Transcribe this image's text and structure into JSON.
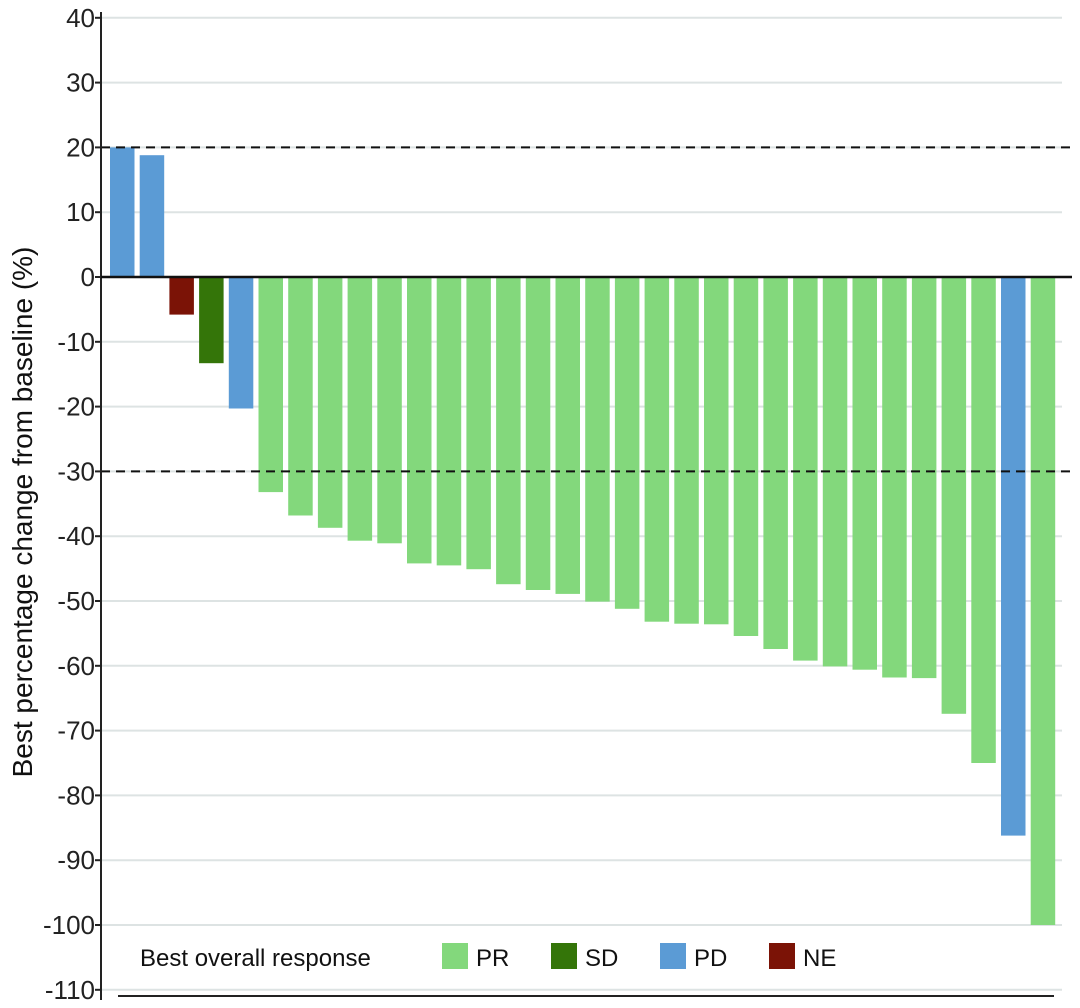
{
  "chart_data": {
    "type": "bar",
    "title": "",
    "xlabel": "",
    "ylabel": "Best percentage change from baseline (%)",
    "ylim": [
      -110,
      40
    ],
    "yticks": [
      40,
      30,
      20,
      10,
      0,
      -10,
      -20,
      -30,
      -40,
      -50,
      -60,
      -70,
      -80,
      -90,
      -100,
      -110
    ],
    "grid": "horizontal",
    "reference_lines": [
      20,
      -30
    ],
    "legend": {
      "title": "Best overall response",
      "placement": "bottom",
      "entries": [
        {
          "label": "PR",
          "color": "#83d87c"
        },
        {
          "label": "SD",
          "color": "#347509"
        },
        {
          "label": "PD",
          "color": "#5b9bd5"
        },
        {
          "label": "NE",
          "color": "#7b1306"
        }
      ]
    },
    "bars": [
      {
        "value": 20,
        "response": "PD"
      },
      {
        "value": 18.8,
        "response": "PD"
      },
      {
        "value": -5.8,
        "response": "NE"
      },
      {
        "value": -13.3,
        "response": "SD"
      },
      {
        "value": -20.3,
        "response": "PD"
      },
      {
        "value": -33.2,
        "response": "PR"
      },
      {
        "value": -36.8,
        "response": "PR"
      },
      {
        "value": -38.7,
        "response": "PR"
      },
      {
        "value": -40.7,
        "response": "PR"
      },
      {
        "value": -41.1,
        "response": "PR"
      },
      {
        "value": -44.2,
        "response": "PR"
      },
      {
        "value": -44.5,
        "response": "PR"
      },
      {
        "value": -45.1,
        "response": "PR"
      },
      {
        "value": -47.4,
        "response": "PR"
      },
      {
        "value": -48.3,
        "response": "PR"
      },
      {
        "value": -48.9,
        "response": "PR"
      },
      {
        "value": -50.1,
        "response": "PR"
      },
      {
        "value": -51.2,
        "response": "PR"
      },
      {
        "value": -53.2,
        "response": "PR"
      },
      {
        "value": -53.5,
        "response": "PR"
      },
      {
        "value": -53.6,
        "response": "PR"
      },
      {
        "value": -55.4,
        "response": "PR"
      },
      {
        "value": -57.4,
        "response": "PR"
      },
      {
        "value": -59.2,
        "response": "PR"
      },
      {
        "value": -60.1,
        "response": "PR"
      },
      {
        "value": -60.6,
        "response": "PR"
      },
      {
        "value": -61.8,
        "response": "PR"
      },
      {
        "value": -61.9,
        "response": "PR"
      },
      {
        "value": -67.4,
        "response": "PR"
      },
      {
        "value": -75.0,
        "response": "PR"
      },
      {
        "value": -86.2,
        "response": "PD"
      },
      {
        "value": -100,
        "response": "PR"
      }
    ]
  }
}
